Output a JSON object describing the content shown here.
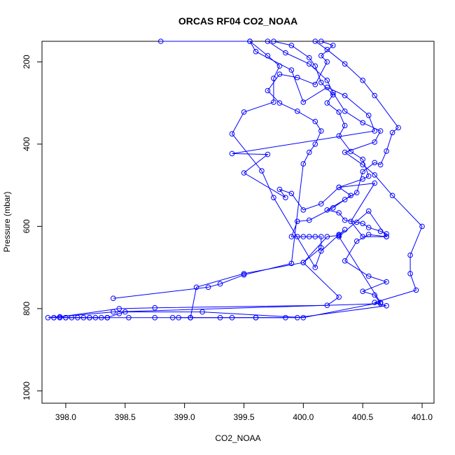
{
  "chart_data": {
    "type": "line",
    "title": "ORCAS RF04 CO2_NOAA",
    "xlabel": "CO2_NOAA",
    "ylabel": "Pressure (mbar)",
    "xlim": [
      397.8,
      401.1
    ],
    "ylim": [
      1030,
      150
    ],
    "y_reversed": true,
    "grid": false,
    "legend": "none",
    "color": "#0000ff",
    "x_ticks": [
      398.0,
      398.5,
      399.0,
      399.5,
      400.0,
      400.5,
      401.0
    ],
    "x_tick_labels": [
      "398.0",
      "398.5",
      "399.0",
      "399.5",
      "400.0",
      "400.5",
      "401.0"
    ],
    "y_ticks": [
      200,
      400,
      600,
      800,
      1000
    ],
    "y_tick_labels": [
      "200",
      "400",
      "600",
      "800",
      "1000"
    ],
    "series": [
      {
        "values": [
          [
            399.05,
            822
          ],
          [
            398.9,
            822
          ],
          [
            398.75,
            822
          ],
          [
            398.53,
            822
          ],
          [
            398.35,
            822
          ],
          [
            398.3,
            822
          ],
          [
            398.25,
            822
          ],
          [
            398.2,
            822
          ],
          [
            398.15,
            822
          ],
          [
            398.1,
            822
          ],
          [
            398.05,
            822
          ],
          [
            397.95,
            822
          ],
          [
            397.9,
            822
          ],
          [
            397.85,
            822
          ],
          [
            398.4,
            808
          ],
          [
            400.65,
            788
          ],
          [
            400.6,
            767
          ],
          [
            400.5,
            758
          ],
          [
            400.7,
            735
          ],
          [
            400.55,
            721
          ],
          [
            400.35,
            684
          ],
          [
            400.45,
            636
          ],
          [
            400.55,
            620
          ],
          [
            400.7,
            625
          ],
          [
            400.7,
            618
          ],
          [
            400.65,
            612
          ],
          [
            400.55,
            603
          ],
          [
            400.5,
            593
          ],
          [
            400.45,
            590
          ],
          [
            400.35,
            585
          ],
          [
            400.3,
            567
          ],
          [
            400.2,
            560
          ],
          [
            400.35,
            535
          ],
          [
            400.45,
            518
          ],
          [
            400.5,
            467
          ],
          [
            400.6,
            445
          ],
          [
            400.65,
            450
          ],
          [
            400.7,
            417
          ],
          [
            400.75,
            372
          ],
          [
            400.8,
            360
          ],
          [
            400.6,
            282
          ],
          [
            400.5,
            245
          ],
          [
            400.35,
            205
          ],
          [
            400.2,
            170
          ],
          [
            400.1,
            150
          ]
        ]
      },
      {
        "values": [
          [
            398.35,
            822
          ],
          [
            398.2,
            822
          ],
          [
            398.0,
            822
          ],
          [
            397.95,
            820
          ],
          [
            397.9,
            822
          ],
          [
            398.45,
            800
          ],
          [
            398.75,
            798
          ],
          [
            400.2,
            792
          ],
          [
            400.3,
            772
          ],
          [
            400.0,
            688
          ],
          [
            400.15,
            652
          ],
          [
            400.15,
            625
          ],
          [
            400.1,
            625
          ],
          [
            400.05,
            625
          ],
          [
            400.0,
            625
          ],
          [
            399.95,
            625
          ],
          [
            399.9,
            625
          ],
          [
            399.95,
            588
          ],
          [
            400.05,
            585
          ],
          [
            400.25,
            555
          ],
          [
            400.4,
            525
          ],
          [
            400.3,
            505
          ],
          [
            400.5,
            485
          ],
          [
            400.55,
            478
          ],
          [
            400.5,
            437
          ],
          [
            400.4,
            418
          ],
          [
            400.3,
            380
          ],
          [
            400.35,
            355
          ],
          [
            400.3,
            322
          ],
          [
            400.2,
            300
          ],
          [
            400.25,
            280
          ],
          [
            400.15,
            250
          ],
          [
            400.1,
            210
          ],
          [
            400.05,
            190
          ],
          [
            399.9,
            160
          ],
          [
            399.75,
            150
          ]
        ]
      },
      {
        "values": [
          [
            399.6,
            822
          ],
          [
            399.3,
            822
          ],
          [
            399.05,
            822
          ],
          [
            398.95,
            822
          ],
          [
            399.95,
            822
          ],
          [
            400.7,
            793
          ],
          [
            400.6,
            785
          ],
          [
            400.95,
            755
          ],
          [
            400.9,
            715
          ],
          [
            400.9,
            670
          ],
          [
            401.0,
            600
          ],
          [
            400.75,
            525
          ],
          [
            400.6,
            475
          ],
          [
            400.5,
            450
          ],
          [
            400.35,
            420
          ],
          [
            400.6,
            395
          ],
          [
            400.65,
            368
          ],
          [
            400.5,
            348
          ],
          [
            400.35,
            320
          ],
          [
            400.25,
            275
          ],
          [
            400.2,
            245
          ],
          [
            400.05,
            205
          ],
          [
            399.85,
            178
          ],
          [
            399.7,
            150
          ]
        ]
      },
      {
        "values": [
          [
            399.85,
            822
          ],
          [
            399.6,
            822
          ],
          [
            399.4,
            822
          ],
          [
            399.05,
            822
          ],
          [
            399.1,
            748
          ],
          [
            399.5,
            715
          ],
          [
            400.0,
            688
          ],
          [
            400.2,
            625
          ],
          [
            400.3,
            622
          ],
          [
            400.35,
            608
          ],
          [
            400.3,
            620
          ],
          [
            400.15,
            660
          ],
          [
            400.1,
            700
          ],
          [
            399.75,
            530
          ],
          [
            399.65,
            465
          ],
          [
            399.4,
            375
          ],
          [
            399.5,
            322
          ],
          [
            399.75,
            298
          ],
          [
            399.75,
            240
          ],
          [
            399.8,
            210
          ],
          [
            399.7,
            185
          ],
          [
            399.55,
            150
          ]
        ]
      },
      {
        "values": [
          [
            398.0,
            822
          ],
          [
            398.35,
            822
          ],
          [
            398.45,
            812
          ],
          [
            398.5,
            808
          ],
          [
            399.15,
            808
          ],
          [
            400.0,
            822
          ],
          [
            400.65,
            785
          ],
          [
            400.3,
            625
          ],
          [
            400.55,
            563
          ],
          [
            400.7,
            625
          ],
          [
            400.5,
            625
          ],
          [
            400.4,
            588
          ],
          [
            400.6,
            495
          ],
          [
            400.3,
            505
          ],
          [
            400.15,
            545
          ],
          [
            400.0,
            560
          ],
          [
            399.9,
            520
          ],
          [
            399.8,
            510
          ],
          [
            399.85,
            530
          ],
          [
            399.5,
            470
          ],
          [
            399.7,
            425
          ],
          [
            399.4,
            423
          ],
          [
            400.6,
            368
          ],
          [
            400.55,
            330
          ],
          [
            400.35,
            282
          ],
          [
            400.2,
            262
          ],
          [
            400.0,
            298
          ],
          [
            399.9,
            220
          ],
          [
            399.6,
            175
          ],
          [
            399.55,
            150
          ],
          [
            398.8,
            150
          ]
        ]
      },
      {
        "values": [
          [
            398.4,
            775
          ],
          [
            399.2,
            748
          ],
          [
            399.3,
            740
          ],
          [
            399.5,
            718
          ],
          [
            399.9,
            690
          ],
          [
            400.0,
            448
          ],
          [
            400.05,
            420
          ],
          [
            400.1,
            400
          ],
          [
            400.15,
            368
          ],
          [
            400.1,
            345
          ],
          [
            399.95,
            320
          ],
          [
            399.8,
            300
          ],
          [
            399.7,
            270
          ],
          [
            399.8,
            230
          ],
          [
            399.95,
            238
          ],
          [
            400.1,
            255
          ],
          [
            400.2,
            200
          ],
          [
            400.15,
            185
          ],
          [
            400.25,
            160
          ],
          [
            400.15,
            150
          ]
        ]
      }
    ]
  }
}
